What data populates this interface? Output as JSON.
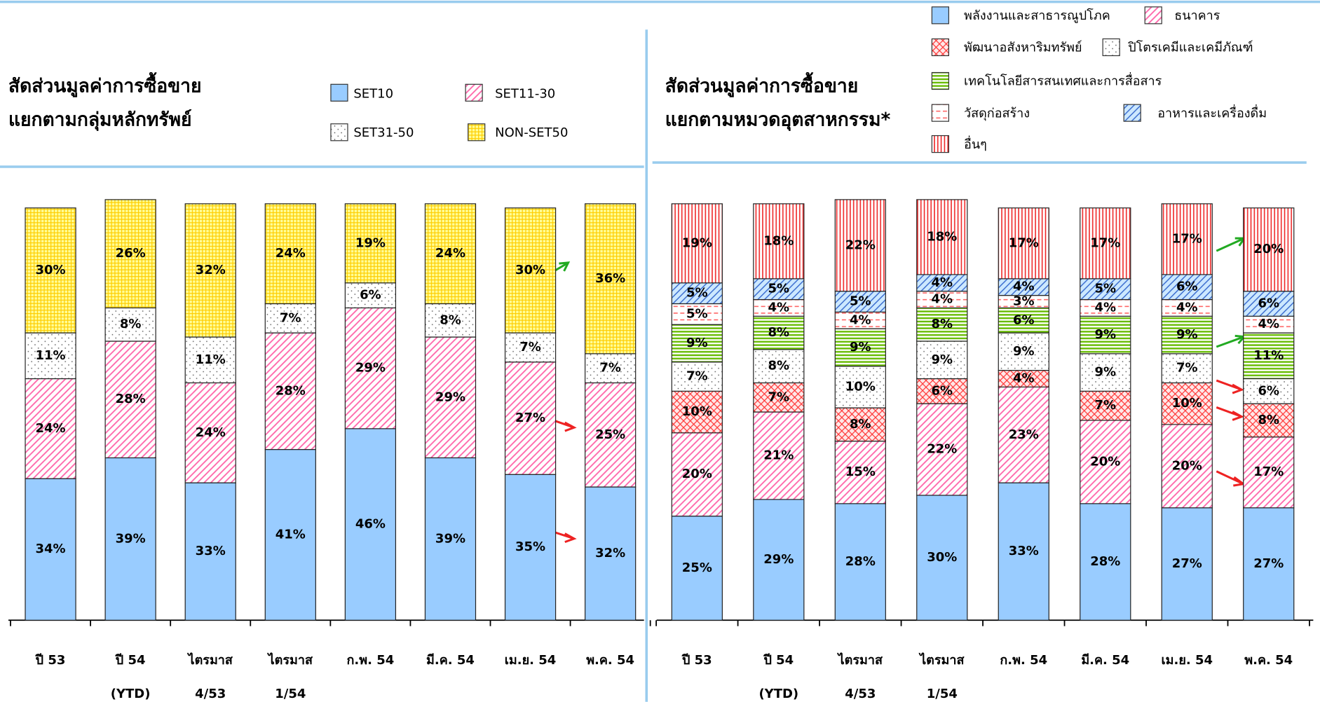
{
  "chart_data": [
    {
      "type": "stacked_bar",
      "title": [
        "สัดส่วนมูลค่าการซื้อขาย",
        "แยกตามกลุ่มหลักทรัพย์"
      ],
      "categories": [
        [
          "ปี 53"
        ],
        [
          "ปี 54",
          "(YTD)"
        ],
        [
          "ไตรมาส",
          "4/53"
        ],
        [
          "ไตรมาส",
          "1/54"
        ],
        [
          "ก.พ. 54"
        ],
        [
          "มี.ค. 54"
        ],
        [
          "เม.ย. 54"
        ],
        [
          "พ.ค. 54"
        ]
      ],
      "ylim": [
        0,
        100
      ],
      "series": [
        {
          "name": "SET10",
          "color": "#99ccff",
          "values": [
            34,
            39,
            33,
            41,
            46,
            39,
            35,
            32
          ],
          "value_labels": [
            "34%",
            "39%",
            "33%",
            "41%",
            "46%",
            "39%",
            "35%",
            "32%"
          ]
        },
        {
          "name": "SET11-30",
          "color": "#ff66aa",
          "values": [
            24,
            28,
            24,
            28,
            29,
            29,
            27,
            25
          ],
          "value_labels": [
            "24%",
            "28%",
            "24%",
            "28%",
            "29%",
            "29%",
            "27%",
            "25%"
          ]
        },
        {
          "name": "SET31-50",
          "color": "#555555",
          "values": [
            11,
            8,
            11,
            7,
            6,
            8,
            7,
            7
          ],
          "value_labels": [
            "11%",
            "8%",
            "11%",
            "7%",
            "6%",
            "8%",
            "7%",
            "7%"
          ]
        },
        {
          "name": "NON-SET50",
          "color": "#ffcc00",
          "values": [
            30,
            26,
            32,
            24,
            19,
            24,
            30,
            36
          ],
          "value_labels": [
            "30%",
            "26%",
            "32%",
            "24%",
            "19%",
            "24%",
            "30%",
            "36%"
          ]
        }
      ]
    },
    {
      "type": "stacked_bar",
      "title": [
        "สัดส่วนมูลค่าการซื้อขาย",
        "แยกตามหมวดอุตสาหกรรม*"
      ],
      "categories": [
        [
          "ปี 53"
        ],
        [
          "ปี 54",
          "(YTD)"
        ],
        [
          "ไตรมาส",
          "4/53"
        ],
        [
          "ไตรมาส",
          "1/54"
        ],
        [
          "ก.พ. 54"
        ],
        [
          "มี.ค. 54"
        ],
        [
          "เม.ย. 54"
        ],
        [
          "พ.ค. 54"
        ]
      ],
      "ylim": [
        0,
        100
      ],
      "series": [
        {
          "name": "พลังงานและสาธารณูปโภค",
          "color": "#99ccff",
          "values": [
            25,
            29,
            28,
            30,
            33,
            28,
            27,
            27
          ],
          "value_labels": [
            "25%",
            "29%",
            "28%",
            "30%",
            "33%",
            "28%",
            "27%",
            "27%"
          ]
        },
        {
          "name": "ธนาคาร",
          "color": "#ff66aa",
          "values": [
            20,
            21,
            15,
            22,
            23,
            20,
            20,
            17
          ],
          "value_labels": [
            "20%",
            "21%",
            "15%",
            "22%",
            "23%",
            "20%",
            "20%",
            "17%"
          ]
        },
        {
          "name": "พัฒนาอสังหาริมทรัพย์",
          "color": "#ff3333",
          "values": [
            10,
            7,
            8,
            6,
            4,
            7,
            10,
            8
          ],
          "value_labels": [
            "10%",
            "7%",
            "8%",
            "6%",
            "4%",
            "7%",
            "10%",
            "8%"
          ]
        },
        {
          "name": "ปิโตรเคมีและเคมีภัณฑ์",
          "color": "#555555",
          "values": [
            7,
            8,
            10,
            9,
            9,
            9,
            7,
            6
          ],
          "value_labels": [
            "7%",
            "8%",
            "10%",
            "9%",
            "9%",
            "9%",
            "7%",
            "6%"
          ]
        },
        {
          "name": "เทคโนโลยีสารสนเทศและการสื่อสาร",
          "color": "#66bb00",
          "values": [
            9,
            8,
            9,
            8,
            6,
            9,
            9,
            11
          ],
          "value_labels": [
            "9%",
            "8%",
            "9%",
            "8%",
            "6%",
            "9%",
            "9%",
            "11%"
          ]
        },
        {
          "name": "วัสดุก่อสร้าง",
          "color": "#ff5555",
          "values": [
            5,
            4,
            4,
            4,
            3,
            4,
            4,
            4
          ],
          "value_labels": [
            "5%",
            "4%",
            "4%",
            "4%",
            "3%",
            "4%",
            "4%",
            "4%"
          ]
        },
        {
          "name": "อาหารและเครื่องดื่ม",
          "color": "#3366cc",
          "values": [
            5,
            5,
            5,
            4,
            4,
            5,
            6,
            6
          ],
          "value_labels": [
            "5%",
            "5%",
            "5%",
            "4%",
            "4%",
            "5%",
            "6%",
            "6%"
          ]
        },
        {
          "name": "อื่นๆ",
          "color": "#ee2222",
          "values": [
            19,
            18,
            22,
            18,
            17,
            17,
            17,
            20
          ],
          "value_labels": [
            "19%",
            "18%",
            "22%",
            "18%",
            "17%",
            "17%",
            "17%",
            "20%"
          ]
        }
      ]
    }
  ]
}
